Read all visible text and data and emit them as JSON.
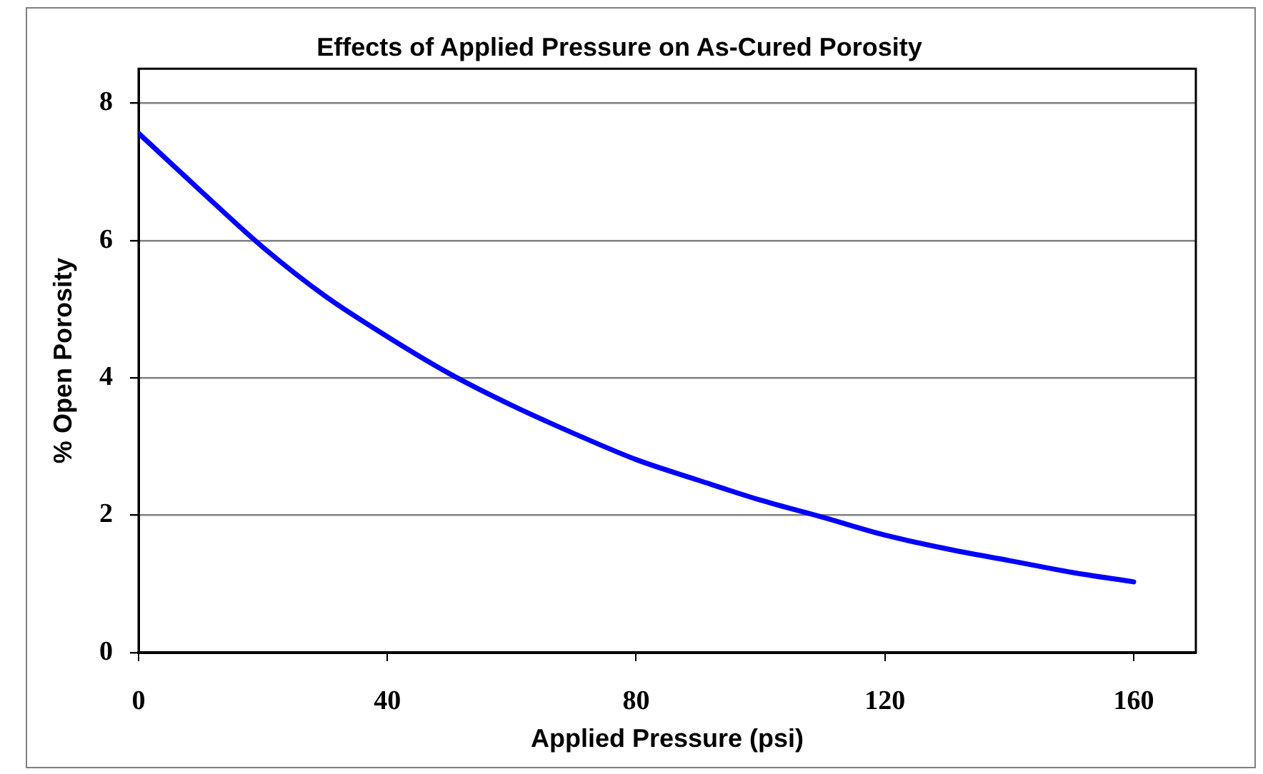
{
  "chart_data": {
    "type": "line",
    "title": "Effects of Applied Pressure on As-Cured Porosity",
    "xlabel": "Applied Pressure (psi)",
    "ylabel": "% Open Porosity",
    "x": [
      0,
      10,
      20,
      30,
      40,
      50,
      60,
      70,
      80,
      90,
      100,
      110,
      120,
      130,
      140,
      150,
      160
    ],
    "series": [
      {
        "color": "#0000ff",
        "values": [
          7.56,
          6.72,
          5.9,
          5.19,
          4.6,
          4.06,
          3.6,
          3.19,
          2.81,
          2.51,
          2.22,
          1.97,
          1.71,
          1.51,
          1.34,
          1.17,
          1.03
        ]
      }
    ],
    "xlim": [
      0,
      170
    ],
    "xticks": [
      0,
      40,
      80,
      120,
      160
    ],
    "ylim": [
      0,
      8.5
    ],
    "yticks": [
      0,
      2,
      4,
      6,
      8
    ],
    "grid": "y",
    "marker": "none",
    "line_style": "solid"
  }
}
